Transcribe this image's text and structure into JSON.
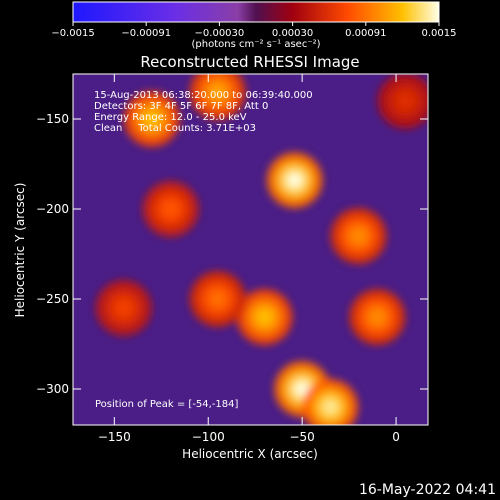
{
  "colorbar": {
    "tick_labels": [
      "−0.0015",
      "−0.00091",
      "−0.00030",
      "0.00030",
      "0.00091",
      "0.0015"
    ],
    "range": [
      -0.0015,
      0.0015
    ],
    "units_label": "(photons cm⁻² s⁻¹ asec⁻²)"
  },
  "chart_data": {
    "type": "heatmap",
    "title": "Reconstructed RHESSI Image",
    "xlabel": "Heliocentric X (arcsec)",
    "ylabel": "Heliocentric Y (arcsec)",
    "xlim": [
      -172,
      17
    ],
    "ylim": [
      -320,
      -125
    ],
    "x_ticks": [
      -150,
      -100,
      -50,
      0
    ],
    "x_tick_labels": [
      "−150",
      "−100",
      "−50",
      "0"
    ],
    "y_ticks": [
      -150,
      -200,
      -250,
      -300
    ],
    "y_tick_labels": [
      "−150",
      "−200",
      "−250",
      "−300"
    ],
    "annotations": [
      "15-Aug-2013 06:38:20.000 to 06:39:40.000",
      "Detectors: 3F 4F 5F 6F 7F 8F, Att 0",
      "Energy Range: 12.0 - 25.0 keV",
      "Clean     Total Counts: 3.71E+03",
      "Position of Peak = [-54,-184]"
    ],
    "peak_position": [
      -54,
      -184
    ],
    "bright_regions": [
      {
        "x": -54,
        "y": -184,
        "value": 0.0015
      },
      {
        "x": -130,
        "y": -150,
        "value": 0.0012
      },
      {
        "x": -95,
        "y": -135,
        "value": 0.0011
      },
      {
        "x": -50,
        "y": -300,
        "value": 0.0015
      },
      {
        "x": -35,
        "y": -310,
        "value": 0.0014
      },
      {
        "x": -70,
        "y": -260,
        "value": 0.0012
      },
      {
        "x": -20,
        "y": -215,
        "value": 0.001
      },
      {
        "x": -10,
        "y": -260,
        "value": 0.001
      },
      {
        "x": -95,
        "y": -250,
        "value": 0.0009
      },
      {
        "x": -145,
        "y": -255,
        "value": 0.0007
      },
      {
        "x": -120,
        "y": -200,
        "value": 0.0008
      },
      {
        "x": 5,
        "y": -140,
        "value": 0.0006
      }
    ]
  },
  "timestamp": "16-May-2022 04:41"
}
